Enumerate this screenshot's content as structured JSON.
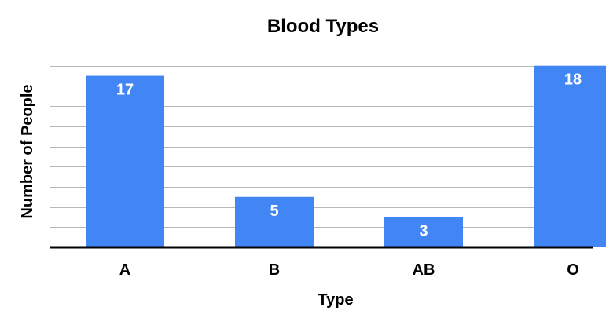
{
  "chart_data": {
    "type": "bar",
    "title": "Blood Types",
    "xlabel": "Type",
    "ylabel": "Number of People",
    "categories": [
      "A",
      "B",
      "AB",
      "O"
    ],
    "values": [
      17,
      5,
      3,
      18
    ],
    "data_labels": [
      "17",
      "5",
      "3",
      "18"
    ],
    "ylim": [
      0,
      20
    ],
    "grid": true,
    "show_y_tick_labels": false,
    "legend": "none",
    "colors": {
      "bar": "#4285f4",
      "grid": "#b7b7b7",
      "axis": "#000000",
      "data_label": "#ffffff"
    }
  }
}
